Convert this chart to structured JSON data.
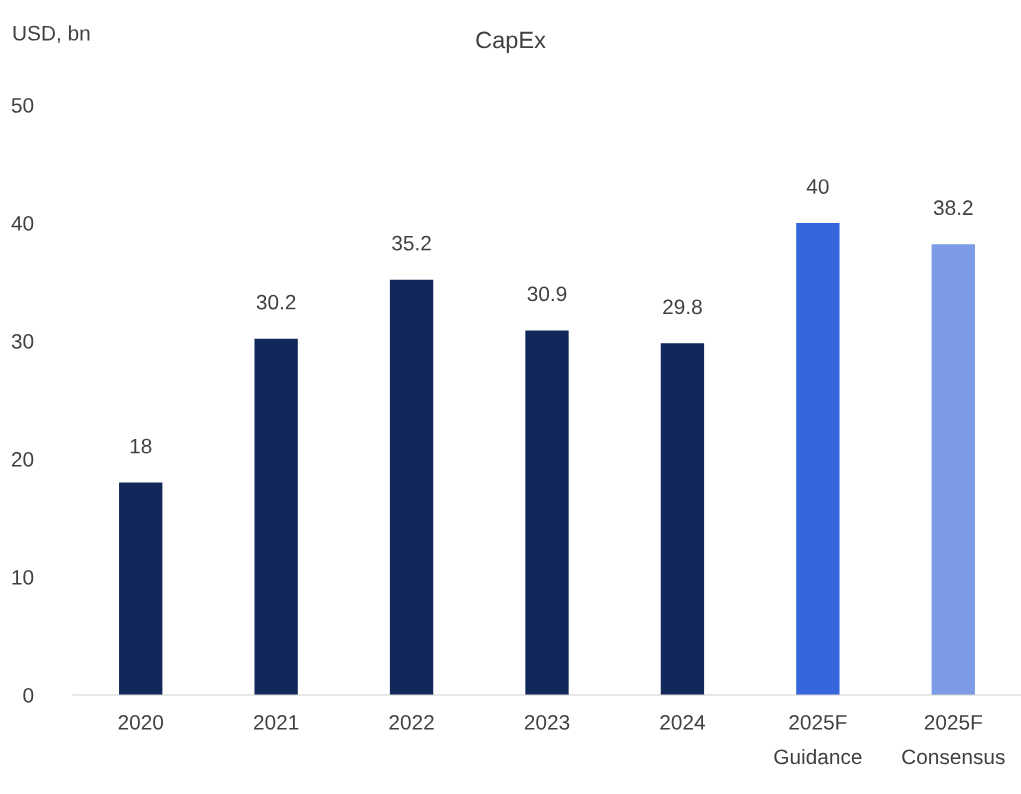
{
  "chart_data": {
    "type": "bar",
    "title": "CapEx",
    "ylabel": "USD, bn",
    "categories": [
      "2020",
      "2021",
      "2022",
      "2023",
      "2024",
      "2025F\nGuidance",
      "2025F\nConsensus"
    ],
    "values": [
      18,
      30.2,
      35.2,
      30.9,
      29.8,
      40,
      38.2
    ],
    "colors": [
      "#13285a",
      "#13285a",
      "#13285a",
      "#13285a",
      "#13285a",
      "#3566dc",
      "#7b9be6"
    ],
    "ylim": [
      0,
      50
    ],
    "yticks": [
      0,
      10,
      20,
      30,
      40,
      50
    ],
    "data_labels": true,
    "grid": false,
    "legend": false
  }
}
